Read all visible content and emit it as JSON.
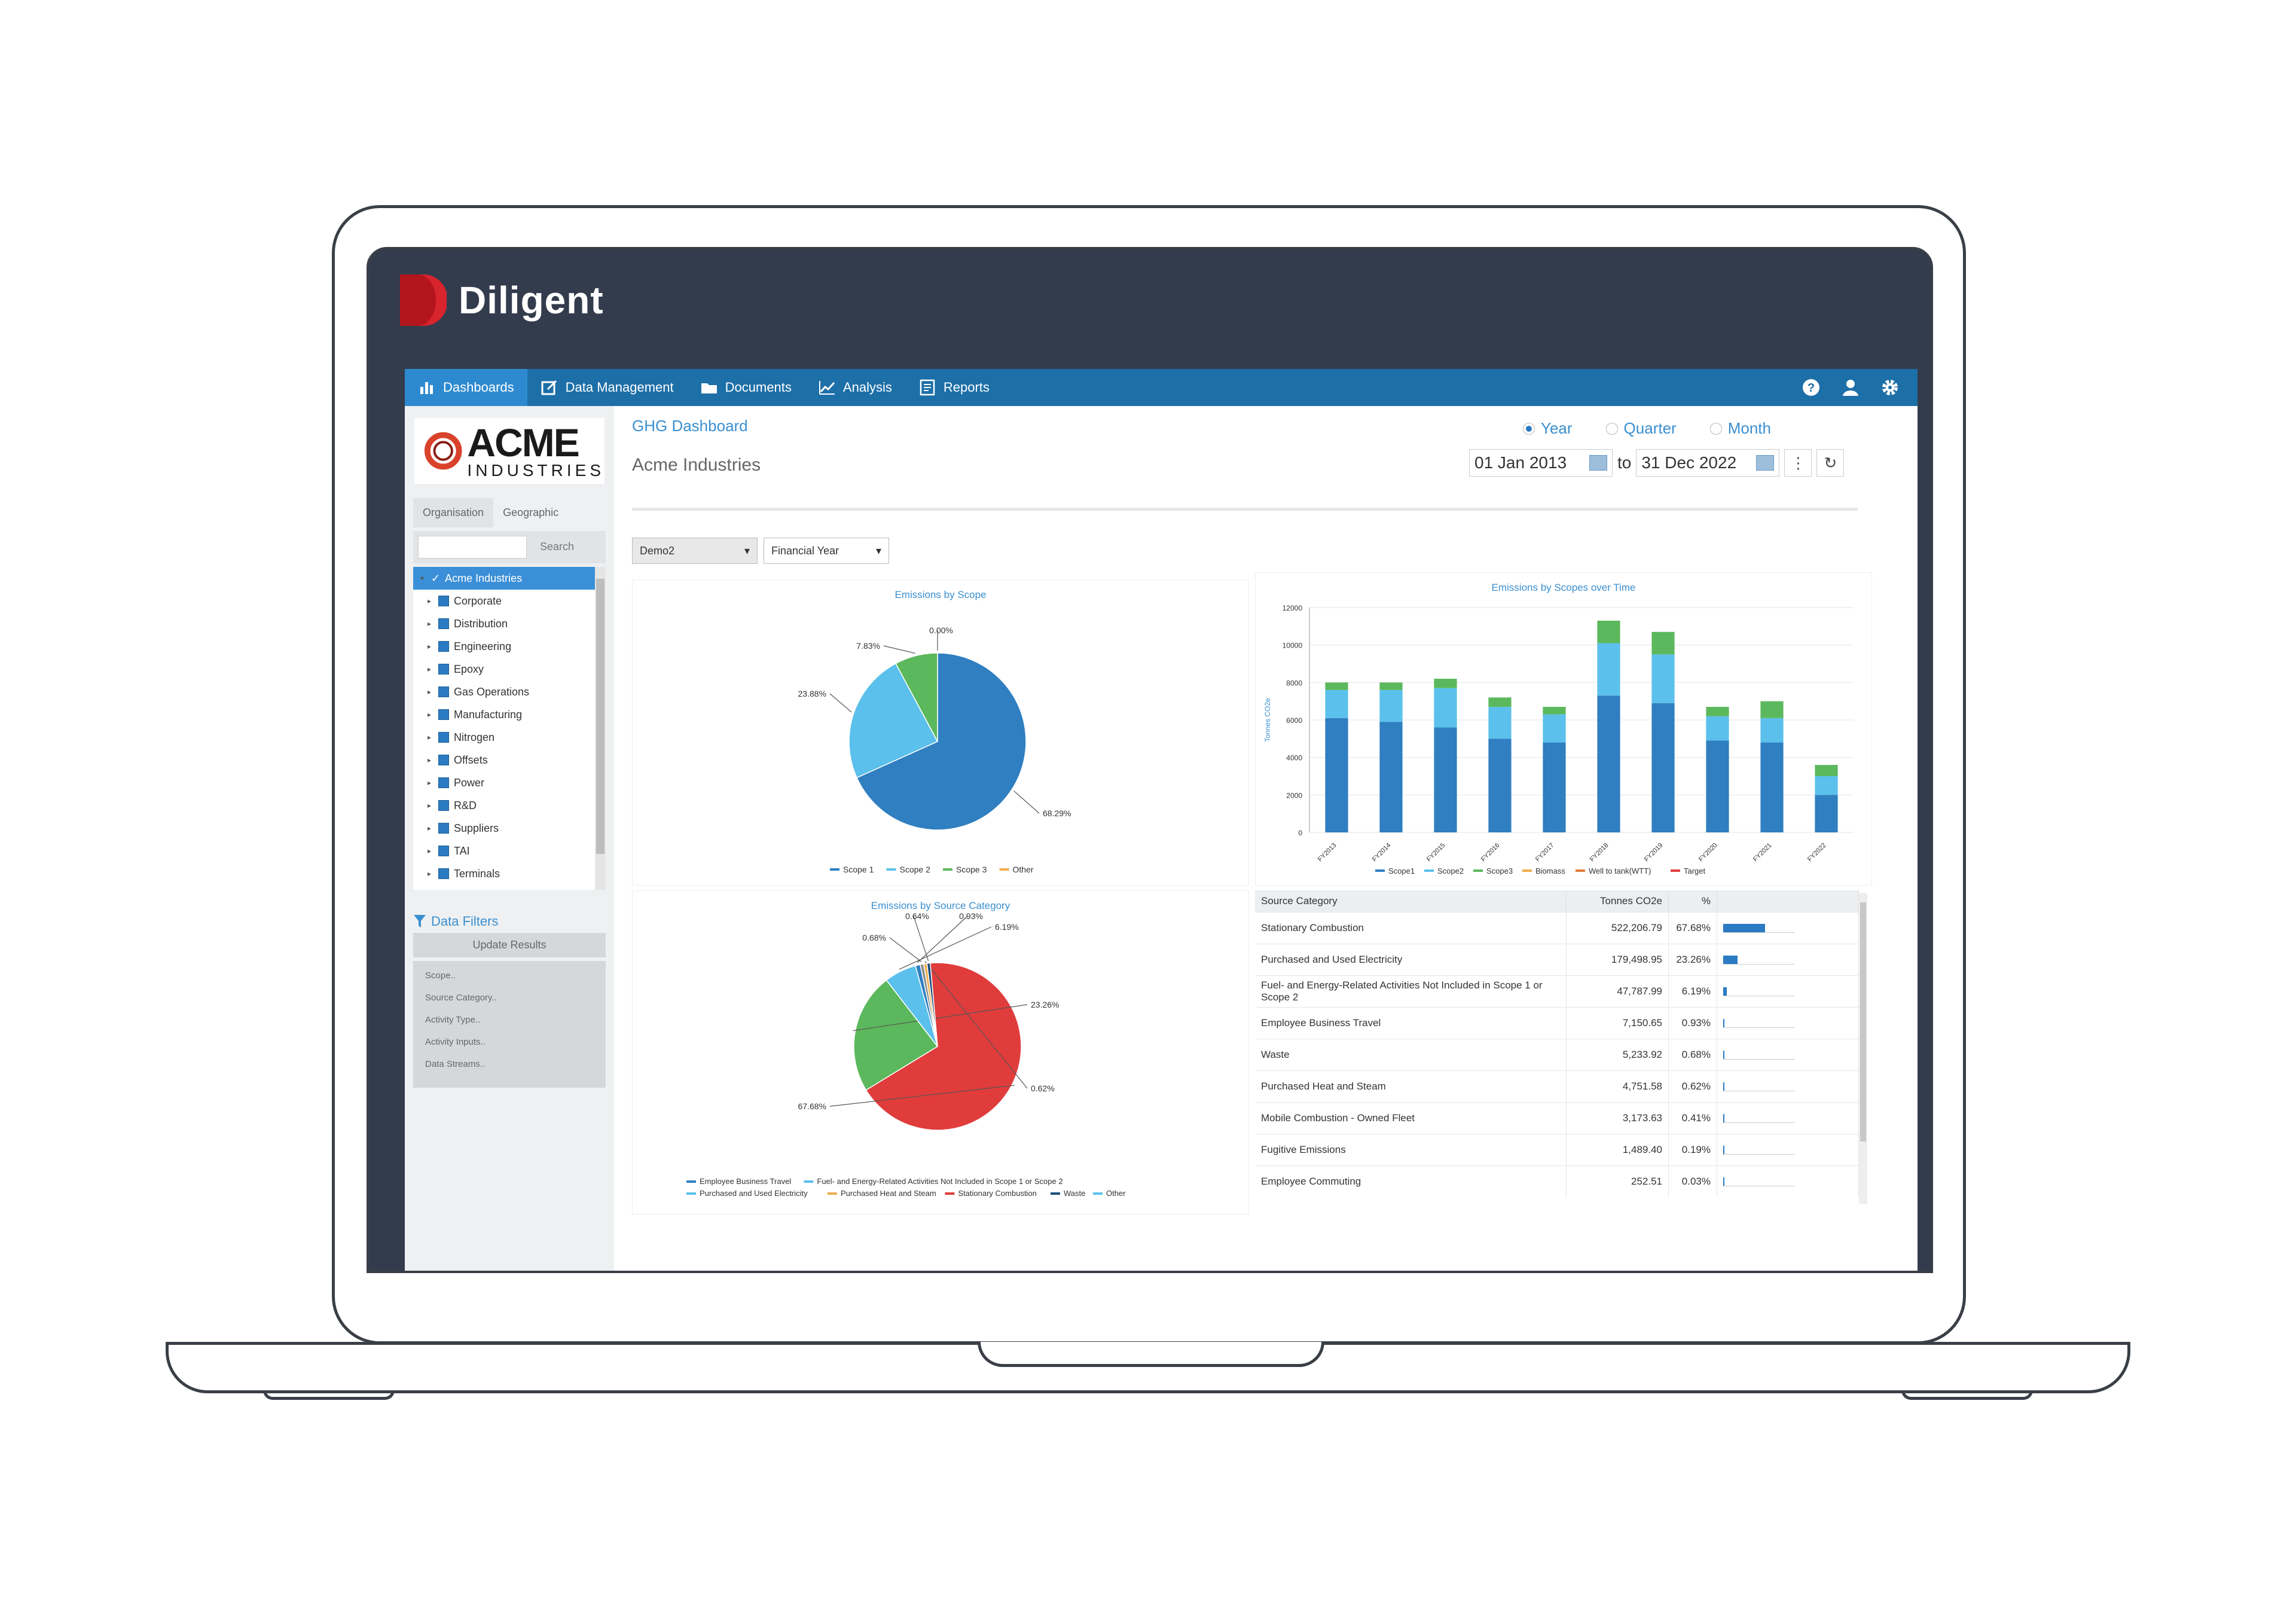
{
  "brand": {
    "name": "Diligent"
  },
  "nav": {
    "items": [
      {
        "label": "Dashboards",
        "icon": "bar-chart-icon"
      },
      {
        "label": "Data Management",
        "icon": "edit-icon"
      },
      {
        "label": "Documents",
        "icon": "folder-icon"
      },
      {
        "label": "Analysis",
        "icon": "line-chart-icon"
      },
      {
        "label": "Reports",
        "icon": "report-icon"
      }
    ],
    "right_icons": [
      "help-icon",
      "user-icon",
      "settings-icon"
    ]
  },
  "sidebar": {
    "logo_main": "ACME",
    "logo_sub": "INDUSTRIES",
    "tabs": [
      "Organisation",
      "Geographic"
    ],
    "search_button": "Search",
    "tree_root": "Acme Industries",
    "tree_items": [
      "Corporate",
      "Distribution",
      "Engineering",
      "Epoxy",
      "Gas Operations",
      "Manufacturing",
      "Nitrogen",
      "Offsets",
      "Power",
      "R&D",
      "Suppliers",
      "TAI",
      "Terminals"
    ],
    "filters_title": "Data Filters",
    "update_button": "Update Results",
    "filters": [
      "Scope..",
      "Source Category..",
      "Activity Type..",
      "Activity Inputs..",
      "Data Streams.."
    ]
  },
  "header": {
    "title": "GHG Dashboard",
    "company": "Acme Industries",
    "period_options": [
      "Year",
      "Quarter",
      "Month"
    ],
    "selected_period": "Year",
    "date_from": "01 Jan 2013",
    "date_to_label": "to",
    "date_to": "31 Dec 2022"
  },
  "selects": {
    "scenario": "Demo2",
    "year_type": "Financial Year"
  },
  "colors": {
    "scope1": "#2f7fc1",
    "scope2": "#5bc0eb",
    "scope3": "#5cb85c",
    "stationary": "#e03c3c",
    "nav": "#1d6fa8"
  },
  "chart_data": [
    {
      "type": "pie",
      "title": "Emissions by Scope",
      "slices": [
        {
          "label": "Scope 1",
          "value": 68.29,
          "display": "68.29%"
        },
        {
          "label": "Scope 2",
          "value": 23.88,
          "display": "23.88%"
        },
        {
          "label": "Scope 3",
          "value": 7.83,
          "display": "7.83%"
        },
        {
          "label": "Other",
          "value": 0.0,
          "display": "0.00%"
        }
      ],
      "legend": [
        "Scope 1",
        "Scope 2",
        "Scope 3",
        "Other"
      ]
    },
    {
      "type": "bar",
      "title": "Emissions by Scopes over Time",
      "ylabel": "Tonnes CO2e",
      "ylim": [
        0,
        12000
      ],
      "yticks": [
        0,
        2000,
        4000,
        6000,
        8000,
        10000,
        12000
      ],
      "categories": [
        "FY2013",
        "FY2014",
        "FY2015",
        "FY2016",
        "FY2017",
        "FY2018",
        "FY2019",
        "FY2020",
        "FY2021",
        "FY2022"
      ],
      "series": [
        {
          "name": "Scope1",
          "values": [
            6100,
            5900,
            5600,
            5000,
            4800,
            7300,
            6900,
            4900,
            4800,
            2000
          ]
        },
        {
          "name": "Scope2",
          "values": [
            1500,
            1700,
            2100,
            1700,
            1500,
            2800,
            2600,
            1300,
            1300,
            1000
          ]
        },
        {
          "name": "Scope3",
          "values": [
            400,
            400,
            500,
            500,
            400,
            1200,
            1200,
            500,
            900,
            600
          ]
        }
      ],
      "legend": [
        "Scope1",
        "Scope2",
        "Scope3",
        "Biomass",
        "Well to tank(WTT)",
        "Target"
      ]
    },
    {
      "type": "pie",
      "title": "Emissions by Source Category",
      "slices": [
        {
          "label": "Stationary Combustion",
          "value": 67.68,
          "display": "67.68%"
        },
        {
          "label": "Purchased and Used Electricity",
          "value": 23.26,
          "display": "23.26%"
        },
        {
          "label": "Fuel- and Energy-Related Activities Not Included in Scope 1 or Scope 2",
          "value": 6.19,
          "display": "6.19%"
        },
        {
          "label": "Employee Business Travel",
          "value": 0.93,
          "display": "0.93%"
        },
        {
          "label": "Waste",
          "value": 0.68,
          "display": "0.68%"
        },
        {
          "label": "Purchased Heat and Steam",
          "value": 0.62,
          "display": "0.62%"
        },
        {
          "label": "Other",
          "value": 0.64,
          "display": "0.64%"
        }
      ],
      "legend": [
        "Employee Business Travel",
        "Fuel- and Energy-Related Activities Not Included in Scope 1 or Scope 2",
        "Purchased and Used Electricity",
        "Purchased Heat and Steam",
        "Stationary Combustion",
        "Waste",
        "Other"
      ]
    }
  ],
  "table": {
    "headers": [
      "Source Category",
      "Tonnes CO2e",
      "%"
    ],
    "rows": [
      {
        "category": "Stationary Combustion",
        "tonnes": "522,206.79",
        "pct": "67.68%",
        "fraction": 0.6768
      },
      {
        "category": "Purchased and Used Electricity",
        "tonnes": "179,498.95",
        "pct": "23.26%",
        "fraction": 0.2326
      },
      {
        "category": "Fuel- and Energy-Related Activities Not Included in Scope 1 or Scope 2",
        "tonnes": "47,787.99",
        "pct": "6.19%",
        "fraction": 0.0619
      },
      {
        "category": "Employee Business Travel",
        "tonnes": "7,150.65",
        "pct": "0.93%",
        "fraction": 0.0093
      },
      {
        "category": "Waste",
        "tonnes": "5,233.92",
        "pct": "0.68%",
        "fraction": 0.0068
      },
      {
        "category": "Purchased Heat and Steam",
        "tonnes": "4,751.58",
        "pct": "0.62%",
        "fraction": 0.0062
      },
      {
        "category": "Mobile Combustion - Owned Fleet",
        "tonnes": "3,173.63",
        "pct": "0.41%",
        "fraction": 0.0041
      },
      {
        "category": "Fugitive Emissions",
        "tonnes": "1,489.40",
        "pct": "0.19%",
        "fraction": 0.0019
      },
      {
        "category": "Employee Commuting",
        "tonnes": "252.51",
        "pct": "0.03%",
        "fraction": 0.0003
      }
    ]
  }
}
